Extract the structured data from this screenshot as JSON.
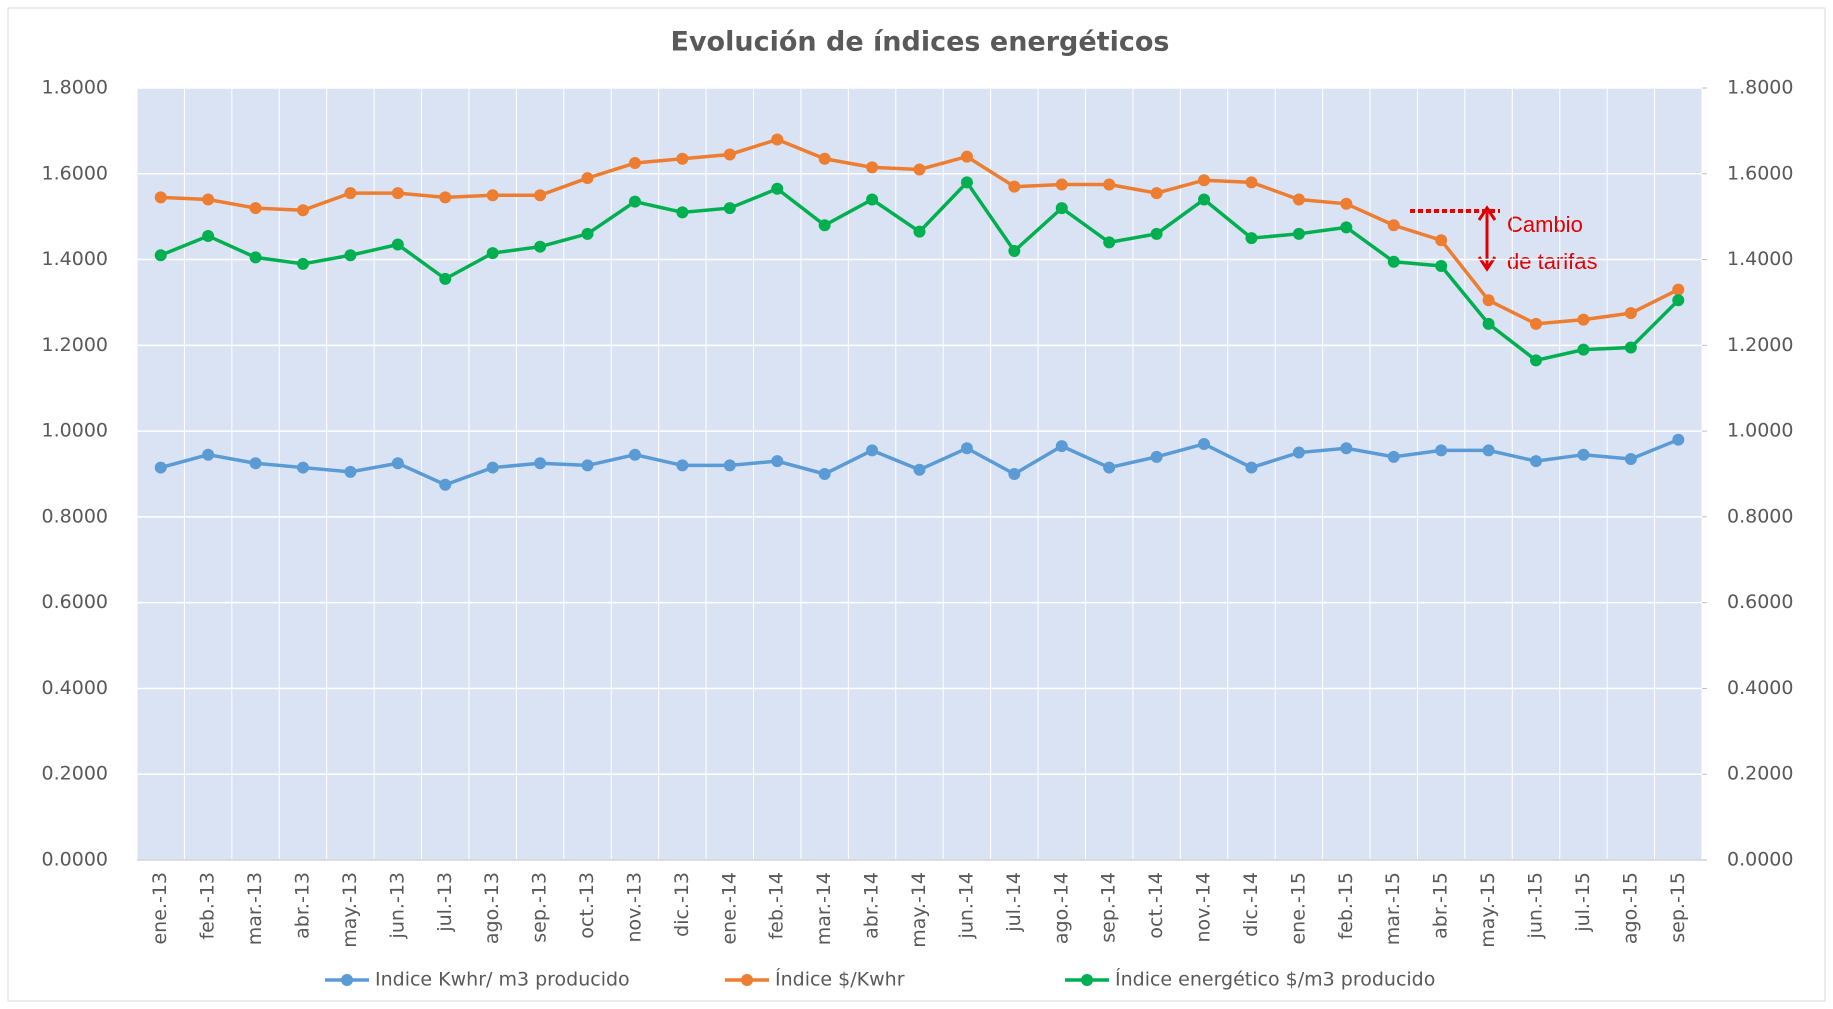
{
  "chart_data": {
    "type": "line",
    "title": "Evolución de índices energéticos",
    "categories": [
      "ene.-13",
      "feb.-13",
      "mar.-13",
      "abr.-13",
      "may.-13",
      "jun.-13",
      "jul.-13",
      "ago.-13",
      "sep.-13",
      "oct.-13",
      "nov.-13",
      "dic.-13",
      "ene.-14",
      "feb.-14",
      "mar.-14",
      "abr.-14",
      "may.-14",
      "jun.-14",
      "jul.-14",
      "ago.-14",
      "sep.-14",
      "oct.-14",
      "nov.-14",
      "dic.-14",
      "ene.-15",
      "feb.-15",
      "mar.-15",
      "abr.-15",
      "may.-15",
      "jun.-15",
      "jul.-15",
      "ago.-15",
      "sep.-15"
    ],
    "series": [
      {
        "name": "Indice Kwhr/ m3 producido",
        "color": "#5b9bd5",
        "values": [
          0.915,
          0.945,
          0.925,
          0.915,
          0.905,
          0.925,
          0.875,
          0.915,
          0.925,
          0.92,
          0.945,
          0.92,
          0.92,
          0.93,
          0.9,
          0.955,
          0.91,
          0.96,
          0.9,
          0.965,
          0.915,
          0.94,
          0.97,
          0.915,
          0.95,
          0.96,
          0.94,
          0.955,
          0.955,
          0.93,
          0.945,
          0.935,
          0.98
        ]
      },
      {
        "name": "Índice $/Kwhr",
        "color": "#ed7d31",
        "values": [
          1.545,
          1.54,
          1.52,
          1.515,
          1.555,
          1.555,
          1.545,
          1.55,
          1.55,
          1.59,
          1.625,
          1.635,
          1.645,
          1.68,
          1.635,
          1.615,
          1.61,
          1.64,
          1.57,
          1.575,
          1.575,
          1.555,
          1.585,
          1.58,
          1.54,
          1.53,
          1.48,
          1.445,
          1.305,
          1.25,
          1.26,
          1.275,
          1.33
        ]
      },
      {
        "name": "Índice energético $/m3 producido",
        "color": "#00b050",
        "values": [
          1.41,
          1.455,
          1.405,
          1.39,
          1.41,
          1.435,
          1.355,
          1.415,
          1.43,
          1.46,
          1.535,
          1.51,
          1.52,
          1.565,
          1.48,
          1.54,
          1.465,
          1.58,
          1.42,
          1.52,
          1.44,
          1.46,
          1.54,
          1.45,
          1.46,
          1.475,
          1.395,
          1.385,
          1.25,
          1.165,
          1.19,
          1.195,
          1.305
        ]
      }
    ],
    "ylim": [
      0,
      1.8
    ],
    "yticks": [
      {
        "value": 0,
        "label": "0.0000"
      },
      {
        "value": 0.2,
        "label": "0.2000"
      },
      {
        "value": 0.4,
        "label": "0.4000"
      },
      {
        "value": 0.6,
        "label": "0.6000"
      },
      {
        "value": 0.8,
        "label": "0.8000"
      },
      {
        "value": 1.0,
        "label": "1.0000"
      },
      {
        "value": 1.2,
        "label": "1.2000"
      },
      {
        "value": 1.4,
        "label": "1.4000"
      },
      {
        "value": 1.6,
        "label": "1.6000"
      },
      {
        "value": 1.8,
        "label": "1.8000"
      }
    ],
    "y2lim": [
      0,
      1.8
    ],
    "y2ticks": [
      {
        "value": 0,
        "label": "0.0000"
      },
      {
        "value": 0.2,
        "label": "0.2000"
      },
      {
        "value": 0.4,
        "label": "0.4000"
      },
      {
        "value": 0.6,
        "label": "0.6000"
      },
      {
        "value": 0.8,
        "label": "0.8000"
      },
      {
        "value": 1.0,
        "label": "1.0000"
      },
      {
        "value": 1.2,
        "label": "1.2000"
      },
      {
        "value": 1.4,
        "label": "1.4000"
      },
      {
        "value": 1.6,
        "label": "1.6000"
      },
      {
        "value": 1.8,
        "label": "1.8000"
      }
    ],
    "grid": true,
    "legend": "bottom",
    "annotation": [
      "Cambio",
      "de tarifas"
    ]
  }
}
